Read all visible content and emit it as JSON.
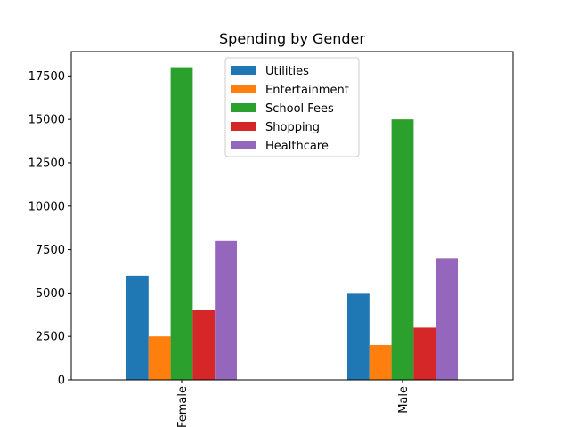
{
  "chart_data": {
    "type": "bar",
    "title": "Spending by Gender",
    "xlabel": "",
    "ylabel": "",
    "categories": [
      "Female",
      "Male"
    ],
    "series": [
      {
        "name": "Utilities",
        "color": "#1f77b4",
        "values": [
          6000,
          5000
        ]
      },
      {
        "name": "Entertainment",
        "color": "#ff7f0e",
        "values": [
          2500,
          2000
        ]
      },
      {
        "name": "School Fees",
        "color": "#2ca02c",
        "values": [
          18000,
          15000
        ]
      },
      {
        "name": "Shopping",
        "color": "#d62728",
        "values": [
          4000,
          3000
        ]
      },
      {
        "name": "Healthcare",
        "color": "#9467bd",
        "values": [
          8000,
          7000
        ]
      }
    ],
    "ylim": [
      0,
      18900
    ],
    "yticks": [
      "0",
      "2500",
      "5000",
      "7500",
      "10000",
      "12500",
      "15000",
      "17500"
    ],
    "grid": false,
    "legend_position": "upper-center",
    "x_tick_rotation": "vertical"
  }
}
